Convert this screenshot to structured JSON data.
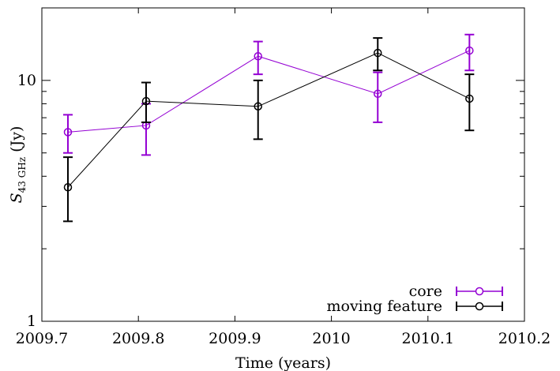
{
  "chart_data": {
    "type": "scatter",
    "xlabel": "Time (years)",
    "ylabel_main": "S",
    "ylabel_sub": "43 GHz",
    "ylabel_unit": " (Jy)",
    "xlim": [
      2009.7,
      2010.2
    ],
    "ylim": [
      1,
      20
    ],
    "ylog": true,
    "grid": false,
    "legend_position": "bottom-right",
    "x_ticks": [
      {
        "value": 2009.7,
        "label": "2009.7"
      },
      {
        "value": 2009.8,
        "label": "2009.8"
      },
      {
        "value": 2009.9,
        "label": "2009.9"
      },
      {
        "value": 2010.0,
        "label": "2010"
      },
      {
        "value": 2010.1,
        "label": "2010.1"
      },
      {
        "value": 2010.2,
        "label": "2010.2"
      }
    ],
    "y_major_ticks": [
      {
        "value": 1,
        "label": "1"
      },
      {
        "value": 10,
        "label": "10"
      }
    ],
    "y_minor_ticks": [
      2,
      3,
      4,
      5,
      6,
      7,
      8,
      9,
      20
    ],
    "series": [
      {
        "name": "core",
        "color": "#9400d3",
        "points": [
          {
            "x": 2009.727,
            "y": 6.1,
            "ylow": 5.0,
            "yhigh": 7.2
          },
          {
            "x": 2009.808,
            "y": 6.5,
            "ylow": 4.9,
            "yhigh": 8.0
          },
          {
            "x": 2009.924,
            "y": 12.6,
            "ylow": 10.6,
            "yhigh": 14.5
          },
          {
            "x": 2010.048,
            "y": 8.8,
            "ylow": 6.7,
            "yhigh": 10.8
          },
          {
            "x": 2010.143,
            "y": 13.3,
            "ylow": 11.0,
            "yhigh": 15.5
          }
        ]
      },
      {
        "name": "moving feature",
        "color": "#000000",
        "points": [
          {
            "x": 2009.727,
            "y": 3.6,
            "ylow": 2.6,
            "yhigh": 4.8
          },
          {
            "x": 2009.808,
            "y": 8.2,
            "ylow": 6.7,
            "yhigh": 9.8
          },
          {
            "x": 2009.924,
            "y": 7.8,
            "ylow": 5.7,
            "yhigh": 10.0
          },
          {
            "x": 2010.048,
            "y": 13.0,
            "ylow": 11.0,
            "yhigh": 15.0
          },
          {
            "x": 2010.143,
            "y": 8.4,
            "ylow": 6.2,
            "yhigh": 10.6
          }
        ]
      }
    ]
  }
}
